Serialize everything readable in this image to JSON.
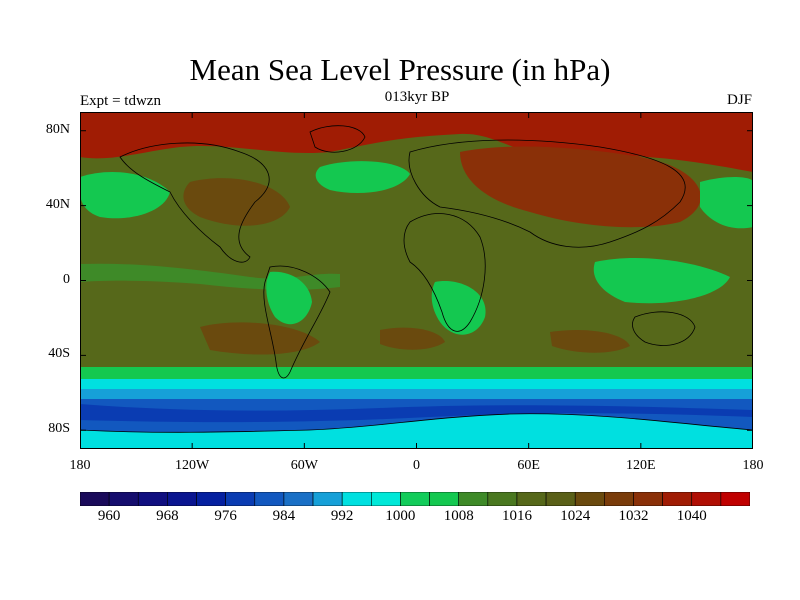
{
  "title": "Mean Sea Level Pressure (in hPa)",
  "experiment_label": "Expt = tdwzn",
  "period_label": "013kyr BP",
  "season_label": "DJF",
  "y_axis": {
    "ticks": [
      "80N",
      "40N",
      "0",
      "40S",
      "80S"
    ],
    "lat_values": [
      80,
      40,
      0,
      -40,
      -80
    ]
  },
  "x_axis": {
    "ticks": [
      "180",
      "120W",
      "60W",
      "0",
      "60E",
      "120E",
      "180"
    ],
    "lon_values": [
      -180,
      -120,
      -60,
      0,
      60,
      120,
      180
    ]
  },
  "colorbar": {
    "colors": [
      "#1a0a5a",
      "#150d6e",
      "#100f80",
      "#0a1590",
      "#0520a0",
      "#0a3cb2",
      "#1258bf",
      "#1a70c6",
      "#16a0d8",
      "#00e0e0",
      "#00e8d8",
      "#12cc5a",
      "#14c850",
      "#3e8a28",
      "#4a7820",
      "#56681a",
      "#5a6018",
      "#6a4a0e",
      "#7a3c0a",
      "#8a3008",
      "#a01c04",
      "#b00e04",
      "#c00000"
    ],
    "labels": [
      "960",
      "968",
      "976",
      "984",
      "992",
      "1000",
      "1008",
      "1016",
      "1024",
      "1032",
      "1040"
    ]
  },
  "colors": {
    "high": "#c00000",
    "land_high": "#8a3008",
    "mid_high": "#6a4a0e",
    "mid": "#56681a",
    "ocean_mid": "#3e8a28",
    "low": "#14c850",
    "cyan": "#00e0e0",
    "blue": "#1a70c6",
    "deep_blue": "#0a3cb2"
  }
}
